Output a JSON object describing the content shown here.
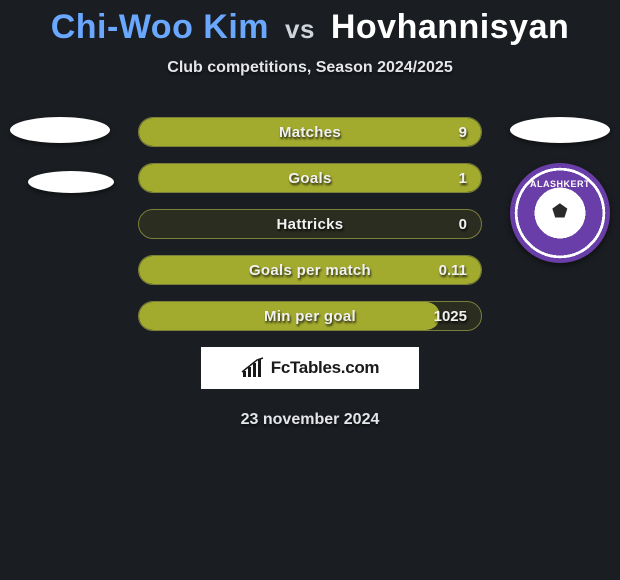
{
  "title": {
    "player1": "Chi-Woo Kim",
    "vs": "vs",
    "player2": "Hovhannisyan",
    "color_p1": "#6aa7ff",
    "color_vs": "#cfd4db",
    "color_p2": "#ffffff"
  },
  "subtitle": "Club competitions, Season 2024/2025",
  "date": "23 november 2024",
  "brand": "FcTables.com",
  "colors": {
    "background": "#1a1d21",
    "bar_border": "#7a7f3a",
    "bar_fill": "#a3ab2f",
    "bar_bg": "#2a2d20",
    "text": "#f1f1f1",
    "badge_ring": "#6a3ea8"
  },
  "stats": [
    {
      "label": "Matches",
      "value": "9",
      "fill_pct": 100,
      "fill_color": "#a3ab2f"
    },
    {
      "label": "Goals",
      "value": "1",
      "fill_pct": 100,
      "fill_color": "#a3ab2f"
    },
    {
      "label": "Hattricks",
      "value": "0",
      "fill_pct": 0,
      "fill_color": "#a3ab2f"
    },
    {
      "label": "Goals per match",
      "value": "0.11",
      "fill_pct": 100,
      "fill_color": "#a3ab2f"
    },
    {
      "label": "Min per goal",
      "value": "1025",
      "fill_pct": 88,
      "fill_color": "#a3ab2f"
    }
  ],
  "right_badge": {
    "text": "ALASHKERT"
  }
}
